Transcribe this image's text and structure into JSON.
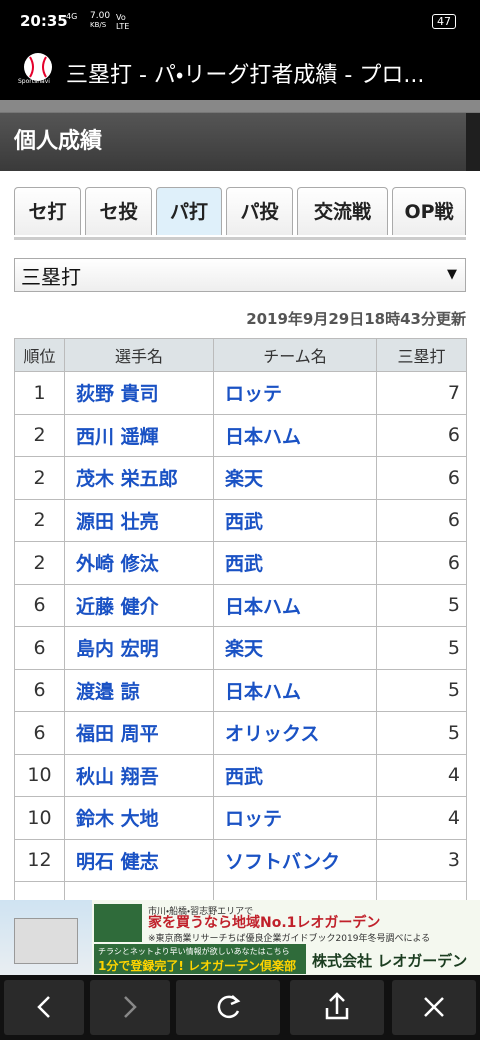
{
  "status_bar": {
    "time": "20:35",
    "network": "4G",
    "speed": "7.00",
    "speed_unit": "KB/S",
    "volte": "Vo LTE",
    "battery": "47"
  },
  "browser": {
    "logo": "Sportsnavi",
    "title": "三塁打 - パ・リーグ打者成績 - プロ..."
  },
  "page": {
    "header": "個人成績",
    "tabs": [
      "セ打",
      "セ投",
      "パ打",
      "パ投",
      "交流戦",
      "OP戦"
    ],
    "active_tab": 2,
    "selector": "三塁打",
    "updated": "2019年9月29日18時43分更新",
    "table": {
      "columns": [
        "順位",
        "選手名",
        "チーム名",
        "三塁打"
      ],
      "rows": [
        [
          1,
          "荻野 貴司",
          "ロッテ",
          7
        ],
        [
          2,
          "西川 遥輝",
          "日本ハム",
          6
        ],
        [
          2,
          "茂木 栄五郎",
          "楽天",
          6
        ],
        [
          2,
          "源田 壮亮",
          "西武",
          6
        ],
        [
          2,
          "外崎 修汰",
          "西武",
          6
        ],
        [
          6,
          "近藤 健介",
          "日本ハム",
          5
        ],
        [
          6,
          "島内 宏明",
          "楽天",
          5
        ],
        [
          6,
          "渡邉 諒",
          "日本ハム",
          5
        ],
        [
          6,
          "福田 周平",
          "オリックス",
          5
        ],
        [
          10,
          "秋山 翔吾",
          "西武",
          4
        ],
        [
          10,
          "鈴木 大地",
          "ロッテ",
          4
        ],
        [
          12,
          "明石 健志",
          "ソフトバンク",
          3
        ]
      ]
    }
  },
  "ad": {
    "line1": "市川・船橋・習志野エリアで",
    "line2": "家を買うなら地域No.1レオガーデン",
    "note": "※東京商業リサーチちば優良企業ガイドブック2019年冬号調べによる",
    "line3": "チラシとネットより早い情報が欲しいあなたはこちら",
    "line4": "1分で登録完了! レオガーデン倶楽部",
    "company": "株式会社 レオガーデン"
  }
}
